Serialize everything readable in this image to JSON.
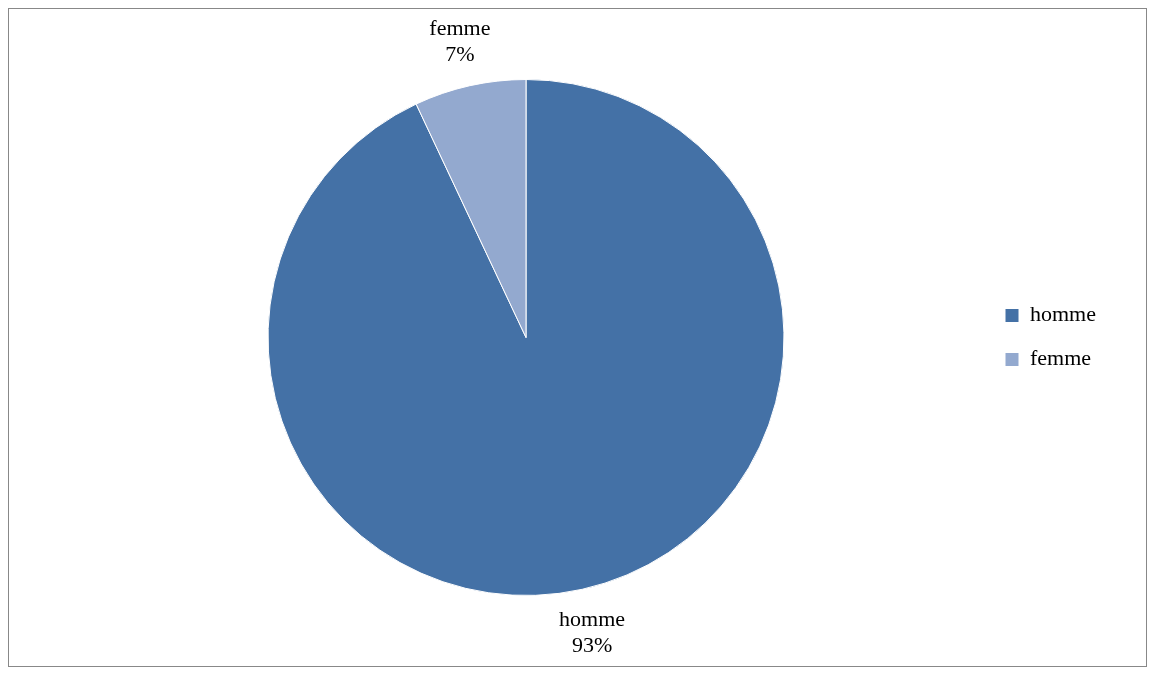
{
  "chart_data": {
    "type": "pie",
    "categories": [
      "homme",
      "femme"
    ],
    "values": [
      93,
      7
    ],
    "value_labels": [
      "93%",
      "7%"
    ],
    "colors": [
      "#4471a6",
      "#93a9cf"
    ],
    "legend": "right"
  }
}
